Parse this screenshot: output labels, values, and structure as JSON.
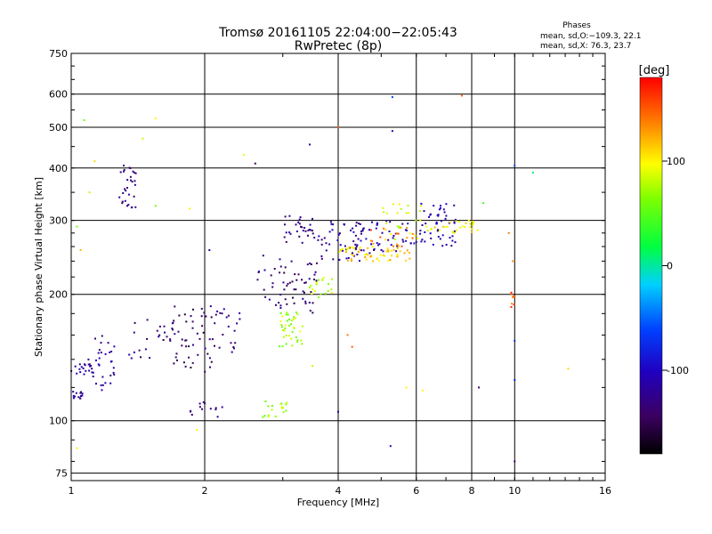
{
  "chart_data": {
    "type": "scatter",
    "title": "Tromsø 20161105 22:04:00−22:05:43",
    "subtitle": "RwPretec (8p)",
    "xlabel": "Frequency [MHz]",
    "ylabel": "Stationary phase Virtual Height [km]",
    "xscale": "log",
    "yscale": "log",
    "xlim": [
      1,
      16
    ],
    "ylim": [
      72,
      750
    ],
    "xticks": [
      1,
      2,
      4,
      6,
      8,
      10,
      16
    ],
    "yticks": [
      75,
      100,
      200,
      300,
      400,
      500,
      600,
      750
    ],
    "grid": true,
    "legend": {
      "title": "Phases",
      "line1": "mean, sd,O:−109.3, 22.1",
      "line2": "mean, sd,X:  76.3, 23.7"
    },
    "colorbar": {
      "label": "[deg]",
      "range": [
        -180,
        180
      ],
      "ticks": [
        100,
        0,
        -100
      ]
    },
    "clusters": [
      {
        "f": [
          1.0,
          1.06
        ],
        "h": [
          112,
          118
        ],
        "phase": -120,
        "n": 14
      },
      {
        "f": [
          1.0,
          1.12
        ],
        "h": [
          128,
          140
        ],
        "phase": -115,
        "n": 20
      },
      {
        "f": [
          1.12,
          1.28
        ],
        "h": [
          118,
          160
        ],
        "phase": -120,
        "n": 30
      },
      {
        "f": [
          1.28,
          1.4
        ],
        "h": [
          320,
          410
        ],
        "phase": -130,
        "n": 30
      },
      {
        "f": [
          1.35,
          1.7
        ],
        "h": [
          140,
          180
        ],
        "phase": -135,
        "n": 25
      },
      {
        "f": [
          1.7,
          2.1
        ],
        "h": [
          130,
          190
        ],
        "phase": -140,
        "n": 45
      },
      {
        "f": [
          1.85,
          2.2
        ],
        "h": [
          102,
          112
        ],
        "phase": -125,
        "n": 12
      },
      {
        "f": [
          2.05,
          2.4
        ],
        "h": [
          145,
          185
        ],
        "phase": -130,
        "n": 22
      },
      {
        "f": [
          2.6,
          3.0
        ],
        "h": [
          185,
          250
        ],
        "phase": -135,
        "n": 20
      },
      {
        "f": [
          2.7,
          3.1
        ],
        "h": [
          102,
          112
        ],
        "phase": 65,
        "n": 18
      },
      {
        "f": [
          2.95,
          3.35
        ],
        "h": [
          150,
          185
        ],
        "phase": 75,
        "n": 40
      },
      {
        "f": [
          3.0,
          3.6
        ],
        "h": [
          180,
          240
        ],
        "phase": -140,
        "n": 40
      },
      {
        "f": [
          3.0,
          3.55
        ],
        "h": [
          265,
          310
        ],
        "phase": -130,
        "n": 30
      },
      {
        "f": [
          3.45,
          3.9
        ],
        "h": [
          195,
          220
        ],
        "phase": 80,
        "n": 20
      },
      {
        "f": [
          3.6,
          4.6
        ],
        "h": [
          240,
          300
        ],
        "phase": -120,
        "n": 45
      },
      {
        "f": [
          4.0,
          5.8
        ],
        "h": [
          240,
          260
        ],
        "phase": 110,
        "n": 60
      },
      {
        "f": [
          4.3,
          6.1
        ],
        "h": [
          250,
          300
        ],
        "phase": -110,
        "n": 50
      },
      {
        "f": [
          4.6,
          5.9
        ],
        "h": [
          260,
          290
        ],
        "phase": 140,
        "n": 18
      },
      {
        "f": [
          5.0,
          6.2
        ],
        "h": [
          270,
          330
        ],
        "phase": 90,
        "n": 25
      },
      {
        "f": [
          6.1,
          7.4
        ],
        "h": [
          260,
          330
        ],
        "phase": -110,
        "n": 50
      },
      {
        "f": [
          6.3,
          8.3
        ],
        "h": [
          280,
          300
        ],
        "phase": 100,
        "n": 30
      },
      {
        "f": [
          9.8,
          10.1
        ],
        "h": [
          185,
          205
        ],
        "phase": 150,
        "n": 8
      }
    ],
    "points": [
      {
        "f": 1.07,
        "h": 520,
        "phase": 60
      },
      {
        "f": 1.13,
        "h": 415,
        "phase": 110
      },
      {
        "f": 1.45,
        "h": 470,
        "phase": 80
      },
      {
        "f": 1.55,
        "h": 525,
        "phase": 100
      },
      {
        "f": 1.55,
        "h": 325,
        "phase": 60
      },
      {
        "f": 5.3,
        "h": 590,
        "phase": -60
      },
      {
        "f": 5.3,
        "h": 490,
        "phase": -110
      },
      {
        "f": 7.6,
        "h": 595,
        "phase": 150
      },
      {
        "f": 4.0,
        "h": 500,
        "phase": 150
      },
      {
        "f": 3.45,
        "h": 455,
        "phase": -120
      },
      {
        "f": 10.0,
        "h": 405,
        "phase": -60
      },
      {
        "f": 11.0,
        "h": 390,
        "phase": 10
      },
      {
        "f": 13.2,
        "h": 133,
        "phase": 110
      },
      {
        "f": 10.0,
        "h": 80,
        "phase": -140
      },
      {
        "f": 10.0,
        "h": 125,
        "phase": -80
      },
      {
        "f": 10.0,
        "h": 155,
        "phase": -80
      },
      {
        "f": 5.25,
        "h": 87,
        "phase": -100
      },
      {
        "f": 8.3,
        "h": 120,
        "phase": -140
      },
      {
        "f": 4.3,
        "h": 150,
        "phase": 150
      },
      {
        "f": 4.2,
        "h": 160,
        "phase": 140
      },
      {
        "f": 1.03,
        "h": 86,
        "phase": 100
      },
      {
        "f": 1.92,
        "h": 95,
        "phase": 100
      },
      {
        "f": 2.0,
        "h": 110,
        "phase": -140
      },
      {
        "f": 1.85,
        "h": 320,
        "phase": 100
      },
      {
        "f": 2.05,
        "h": 255,
        "phase": -120
      },
      {
        "f": 2.6,
        "h": 410,
        "phase": -150
      },
      {
        "f": 2.45,
        "h": 430,
        "phase": 90
      },
      {
        "f": 5.7,
        "h": 120,
        "phase": 100
      },
      {
        "f": 6.2,
        "h": 118,
        "phase": 100
      },
      {
        "f": 4.0,
        "h": 105,
        "phase": -120
      },
      {
        "f": 3.5,
        "h": 135,
        "phase": 80
      },
      {
        "f": 1.1,
        "h": 350,
        "phase": 80
      },
      {
        "f": 1.03,
        "h": 290,
        "phase": 60
      },
      {
        "f": 1.05,
        "h": 255,
        "phase": 120
      },
      {
        "f": 9.7,
        "h": 280,
        "phase": 140
      },
      {
        "f": 9.9,
        "h": 240,
        "phase": 130
      },
      {
        "f": 8.5,
        "h": 330,
        "phase": 40
      }
    ]
  }
}
